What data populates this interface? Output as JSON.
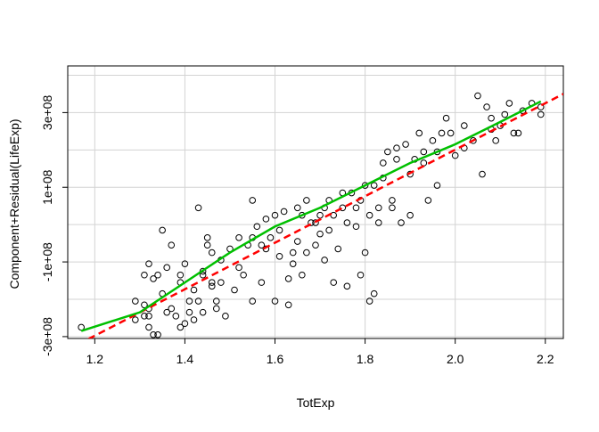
{
  "chart_data": {
    "type": "scatter",
    "title": "",
    "xlabel": "TotExp",
    "ylabel": "Component+Residual(LifeExp)",
    "xlim": [
      1.14,
      2.24
    ],
    "ylim": [
      -305000000.0,
      425000000.0
    ],
    "x_ticks": [
      1.2,
      1.4,
      1.6,
      1.8,
      2.0,
      2.2
    ],
    "x_tick_labels": [
      "1.2",
      "1.4",
      "1.6",
      "1.8",
      "2.0",
      "2.2"
    ],
    "y_ticks": [
      -300000000.0,
      -100000000.0,
      100000000.0,
      300000000.0
    ],
    "y_tick_labels": [
      "-3e+08",
      "-1e+08",
      "1e+08",
      "3e+08"
    ],
    "grid": true,
    "x_grid": [
      1.2,
      1.4,
      1.6,
      1.8,
      2.0,
      2.2
    ],
    "y_grid": [
      -300000000.0,
      -200000000.0,
      -100000000.0,
      0,
      100000000.0,
      200000000.0,
      300000000.0,
      400000000.0
    ],
    "colors": {
      "points": "#000000",
      "fit_line": "#ff0000",
      "smooth_line": "#00c000",
      "grid": "#d3d3d3",
      "box": "#000000"
    },
    "series": [
      {
        "kind": "points",
        "points": [
          [
            1.17,
            -275000000.0
          ],
          [
            1.29,
            -255000000.0
          ],
          [
            1.29,
            -205000000.0
          ],
          [
            1.31,
            -245000000.0
          ],
          [
            1.31,
            -135000000.0
          ],
          [
            1.32,
            -275000000.0
          ],
          [
            1.32,
            -245000000.0
          ],
          [
            1.32,
            -225000000.0
          ],
          [
            1.32,
            -105000000.0
          ],
          [
            1.33,
            -145000000.0
          ],
          [
            1.33,
            -295000000.0
          ],
          [
            1.34,
            -295000000.0
          ],
          [
            1.34,
            -135000000.0
          ],
          [
            1.35,
            -15000000.0
          ],
          [
            1.36,
            -115000000.0
          ],
          [
            1.37,
            -225000000.0
          ],
          [
            1.37,
            -55000000.0
          ],
          [
            1.38,
            -245000000.0
          ],
          [
            1.39,
            -275000000.0
          ],
          [
            1.39,
            -135000000.0
          ],
          [
            1.4,
            -105000000.0
          ],
          [
            1.4,
            -265000000.0
          ],
          [
            1.41,
            -235000000.0
          ],
          [
            1.42,
            -255000000.0
          ],
          [
            1.42,
            -175000000.0
          ],
          [
            1.43,
            -205000000.0
          ],
          [
            1.43,
            45000000.0
          ],
          [
            1.44,
            -125000000.0
          ],
          [
            1.44,
            -235000000.0
          ],
          [
            1.45,
            -35000000.0
          ],
          [
            1.45,
            -55000000.0
          ],
          [
            1.46,
            -155000000.0
          ],
          [
            1.46,
            -75000000.0
          ],
          [
            1.47,
            -205000000.0
          ],
          [
            1.47,
            -225000000.0
          ],
          [
            1.48,
            -155000000.0
          ],
          [
            1.49,
            -245000000.0
          ],
          [
            1.5,
            -65000000.0
          ],
          [
            1.51,
            -175000000.0
          ],
          [
            1.52,
            -115000000.0
          ],
          [
            1.53,
            -135000000.0
          ],
          [
            1.54,
            -55000000.0
          ],
          [
            1.55,
            -35000000.0
          ],
          [
            1.55,
            65000000.0
          ],
          [
            1.56,
            -5000000.0
          ],
          [
            1.57,
            -55000000.0
          ],
          [
            1.58,
            15000000.0
          ],
          [
            1.59,
            -35000000.0
          ],
          [
            1.6,
            -205000000.0
          ],
          [
            1.61,
            -85000000.0
          ],
          [
            1.62,
            35000000.0
          ],
          [
            1.63,
            -145000000.0
          ],
          [
            1.64,
            -105000000.0
          ],
          [
            1.65,
            -45000000.0
          ],
          [
            1.65,
            45000000.0
          ],
          [
            1.66,
            25000000.0
          ],
          [
            1.67,
            -75000000.0
          ],
          [
            1.67,
            65000000.0
          ],
          [
            1.68,
            5000000.0
          ],
          [
            1.69,
            -55000000.0
          ],
          [
            1.7,
            -25000000.0
          ],
          [
            1.7,
            25000000.0
          ],
          [
            1.71,
            45000000.0
          ],
          [
            1.72,
            -15000000.0
          ],
          [
            1.72,
            65000000.0
          ],
          [
            1.73,
            25000000.0
          ],
          [
            1.74,
            -65000000.0
          ],
          [
            1.75,
            85000000.0
          ],
          [
            1.76,
            5000000.0
          ],
          [
            1.77,
            85000000.0
          ],
          [
            1.78,
            45000000.0
          ],
          [
            1.79,
            -135000000.0
          ],
          [
            1.8,
            105000000.0
          ],
          [
            1.8,
            -75000000.0
          ],
          [
            1.81,
            -205000000.0
          ],
          [
            1.81,
            25000000.0
          ],
          [
            1.82,
            105000000.0
          ],
          [
            1.83,
            45000000.0
          ],
          [
            1.84,
            125000000.0
          ],
          [
            1.85,
            195000000.0
          ],
          [
            1.86,
            65000000.0
          ],
          [
            1.87,
            205000000.0
          ],
          [
            1.88,
            5000000.0
          ],
          [
            1.89,
            215000000.0
          ],
          [
            1.9,
            25000000.0
          ],
          [
            1.91,
            175000000.0
          ],
          [
            1.92,
            245000000.0
          ],
          [
            1.93,
            195000000.0
          ],
          [
            1.95,
            225000000.0
          ],
          [
            1.96,
            195000000.0
          ],
          [
            1.98,
            285000000.0
          ],
          [
            1.99,
            245000000.0
          ],
          [
            2.02,
            265000000.0
          ],
          [
            2.04,
            225000000.0
          ],
          [
            2.05,
            345000000.0
          ],
          [
            2.06,
            135000000.0
          ],
          [
            2.07,
            315000000.0
          ],
          [
            2.08,
            285000000.0
          ],
          [
            2.09,
            225000000.0
          ],
          [
            2.11,
            295000000.0
          ],
          [
            2.12,
            325000000.0
          ],
          [
            2.13,
            245000000.0
          ],
          [
            2.15,
            305000000.0
          ],
          [
            2.17,
            325000000.0
          ],
          [
            2.19,
            295000000.0
          ],
          [
            2.19,
            315000000.0
          ],
          [
            1.55,
            -205000000.0
          ],
          [
            1.73,
            -155000000.0
          ],
          [
            1.76,
            -165000000.0
          ],
          [
            1.63,
            -215000000.0
          ],
          [
            1.61,
            -15000000.0
          ],
          [
            1.66,
            -135000000.0
          ],
          [
            1.78,
            -5000000.0
          ],
          [
            1.82,
            -185000000.0
          ],
          [
            1.94,
            65000000.0
          ],
          [
            2.02,
            205000000.0
          ],
          [
            1.87,
            175000000.0
          ],
          [
            1.84,
            165000000.0
          ],
          [
            1.57,
            -155000000.0
          ],
          [
            1.48,
            -95000000.0
          ],
          [
            1.44,
            -135000000.0
          ],
          [
            1.39,
            -155000000.0
          ],
          [
            1.35,
            -185000000.0
          ],
          [
            1.52,
            -35000000.0
          ],
          [
            1.6,
            25000000.0
          ],
          [
            1.69,
            5000000.0
          ],
          [
            1.75,
            45000000.0
          ],
          [
            1.79,
            65000000.0
          ],
          [
            1.83,
            5000000.0
          ],
          [
            1.86,
            45000000.0
          ],
          [
            1.97,
            245000000.0
          ],
          [
            2.1,
            265000000.0
          ],
          [
            2.14,
            245000000.0
          ],
          [
            2.0,
            185000000.0
          ],
          [
            1.9,
            135000000.0
          ],
          [
            1.71,
            -95000000.0
          ],
          [
            1.64,
            -75000000.0
          ],
          [
            1.58,
            -65000000.0
          ],
          [
            1.46,
            -165000000.0
          ],
          [
            1.41,
            -205000000.0
          ],
          [
            1.36,
            -235000000.0
          ],
          [
            1.31,
            -215000000.0
          ],
          [
            1.96,
            105000000.0
          ],
          [
            2.08,
            255000000.0
          ],
          [
            1.93,
            165000000.0
          ]
        ]
      },
      {
        "kind": "line",
        "name": "",
        "style": "dashed",
        "points": [
          [
            1.14,
            -335000000.0
          ],
          [
            2.24,
            350000000.0
          ]
        ]
      },
      {
        "kind": "line",
        "name": "",
        "style": "solid",
        "points": [
          [
            1.17,
            -285000000.0
          ],
          [
            1.3,
            -235000000.0
          ],
          [
            1.4,
            -155000000.0
          ],
          [
            1.5,
            -75000000.0
          ],
          [
            1.6,
            -5000000.0
          ],
          [
            1.7,
            45000000.0
          ],
          [
            1.8,
            105000000.0
          ],
          [
            1.9,
            165000000.0
          ],
          [
            2.0,
            215000000.0
          ],
          [
            2.1,
            275000000.0
          ],
          [
            2.19,
            330000000.0
          ]
        ]
      }
    ]
  }
}
